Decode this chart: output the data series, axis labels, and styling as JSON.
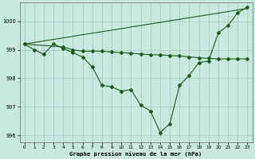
{
  "line_main_x": [
    0,
    1,
    2,
    3,
    4,
    5,
    6,
    7,
    8,
    9,
    10,
    11,
    12,
    13,
    14,
    15,
    16,
    17,
    18,
    19,
    20,
    21,
    22,
    23
  ],
  "line_main_y": [
    999.2,
    999.0,
    998.85,
    999.2,
    999.05,
    998.9,
    998.75,
    998.4,
    997.75,
    997.7,
    997.55,
    997.6,
    997.05,
    996.85,
    996.1,
    996.4,
    997.75,
    998.1,
    998.55,
    998.6,
    999.6,
    999.85,
    1000.3,
    1000.5
  ],
  "line_trend_x": [
    0,
    23
  ],
  "line_trend_y": [
    999.2,
    1000.45
  ],
  "line_flat_x": [
    0,
    4,
    5,
    6,
    7,
    8,
    9,
    10,
    11,
    12,
    13,
    14,
    15,
    16,
    17,
    18,
    19,
    20,
    21,
    22,
    23
  ],
  "line_flat_y": [
    999.2,
    999.1,
    999.0,
    998.95,
    998.95,
    998.95,
    998.92,
    998.9,
    998.88,
    998.85,
    998.83,
    998.82,
    998.8,
    998.78,
    998.75,
    998.72,
    998.7,
    998.68,
    998.68,
    998.68,
    998.68
  ],
  "line_color": "#1a5c1a",
  "bg_color": "#c8e8e0",
  "grid_color": "#a0c8c0",
  "xlabel": "Graphe pression niveau de la mer (hPa)",
  "xlim": [
    -0.5,
    23.5
  ],
  "ylim": [
    995.75,
    1000.65
  ],
  "yticks": [
    996,
    997,
    998,
    999,
    1000
  ],
  "xticks": [
    0,
    1,
    2,
    3,
    4,
    5,
    6,
    7,
    8,
    9,
    10,
    11,
    12,
    13,
    14,
    15,
    16,
    17,
    18,
    19,
    20,
    21,
    22,
    23
  ]
}
